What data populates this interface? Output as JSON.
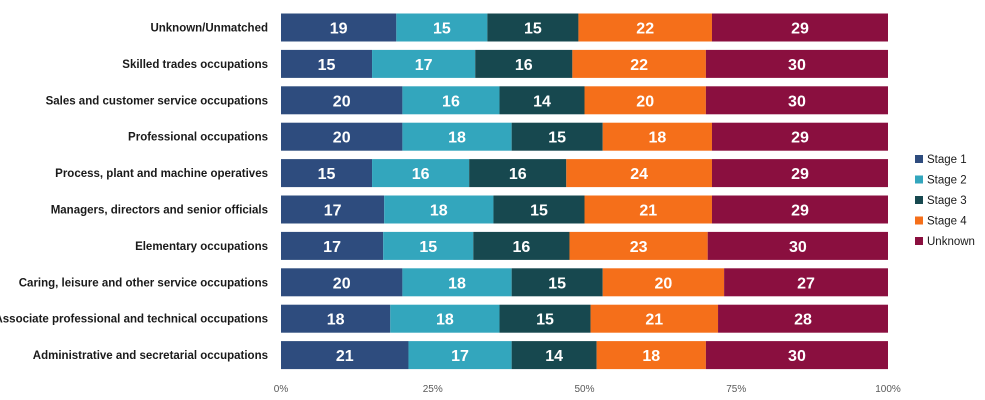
{
  "chart_data": {
    "type": "bar",
    "orientation": "horizontal",
    "stacked": true,
    "percent_stacked": true,
    "categories": [
      "Unknown/Unmatched",
      "Skilled trades occupations",
      "Sales and customer service occupations",
      "Professional occupations",
      "Process, plant and machine operatives",
      "Managers, directors and senior officials",
      "Elementary occupations",
      "Caring, leisure and other service occupations",
      "Associate professional and technical occupations",
      "Administrative and secretarial occupations"
    ],
    "series": [
      {
        "name": "Stage 1",
        "color": "#2E4C7E",
        "values": [
          19,
          15,
          20,
          20,
          15,
          17,
          17,
          20,
          18,
          21
        ]
      },
      {
        "name": "Stage 2",
        "color": "#33A6BD",
        "values": [
          15,
          17,
          16,
          18,
          16,
          18,
          15,
          18,
          18,
          17
        ]
      },
      {
        "name": "Stage 3",
        "color": "#17484F",
        "values": [
          15,
          16,
          14,
          15,
          16,
          15,
          16,
          15,
          15,
          14
        ]
      },
      {
        "name": "Stage 4",
        "color": "#F56F1A",
        "values": [
          22,
          22,
          20,
          18,
          24,
          21,
          23,
          20,
          21,
          18
        ]
      },
      {
        "name": "Unknown",
        "color": "#8A0F3F",
        "values": [
          29,
          30,
          30,
          29,
          29,
          29,
          30,
          27,
          28,
          30
        ]
      }
    ],
    "x_ticks": [
      "0%",
      "25%",
      "50%",
      "75%",
      "100%"
    ],
    "xlim": [
      0,
      100
    ],
    "legend_position": "right",
    "grid": false,
    "title": "",
    "xlabel": "",
    "ylabel": ""
  }
}
